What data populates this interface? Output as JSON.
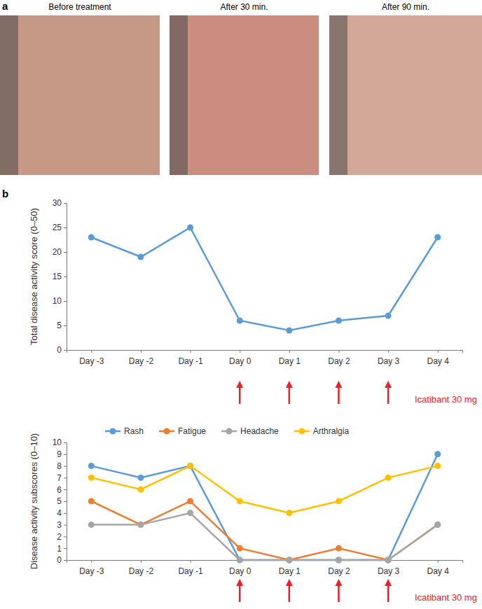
{
  "panel_labels": [
    "a",
    "b"
  ],
  "photos": [
    "Before treatment",
    "After 30 min.",
    "After 90 min."
  ],
  "chart_data": [
    {
      "type": "line",
      "y_label": "Total disease activity score (0–50)",
      "categories": [
        "Day -3",
        "Day -2",
        "Day -1",
        "Day 0",
        "Day 1",
        "Day 2",
        "Day 3",
        "Day 4"
      ],
      "values": [
        23,
        19,
        25,
        6,
        4,
        6,
        7,
        23
      ],
      "color": "#5b9bd5",
      "marker": "circle",
      "ylim": [
        0,
        30
      ],
      "yticks": [
        0,
        5,
        10,
        15,
        20,
        25,
        30
      ],
      "grid": false,
      "annotations": [
        {
          "text": "Icatibant 30 mg",
          "at": [
            "Day 0",
            "Day 1",
            "Day 2",
            "Day 3"
          ]
        }
      ]
    },
    {
      "type": "line",
      "y_label": "Disease activity subscores (0–10)",
      "categories": [
        "Day -3",
        "Day -2",
        "Day -1",
        "Day 0",
        "Day 1",
        "Day 2",
        "Day 3",
        "Day 4"
      ],
      "series": [
        {
          "name": "Rash",
          "color": "#5b9bd5",
          "marker": "circle",
          "values": [
            8,
            7,
            8,
            0,
            0,
            0,
            0,
            9
          ]
        },
        {
          "name": "Fatigue",
          "color": "#ed7d31",
          "marker": "circle",
          "values": [
            5,
            3,
            5,
            1,
            0,
            1,
            0,
            3
          ]
        },
        {
          "name": "Headache",
          "color": "#a5a5a5",
          "marker": "circle",
          "values": [
            3,
            3,
            4,
            0,
            0,
            0,
            0,
            3
          ]
        },
        {
          "name": "Arthralgia",
          "color": "#ffc000",
          "marker": "circle",
          "values": [
            7,
            6,
            8,
            5,
            4,
            5,
            7,
            8
          ]
        }
      ],
      "ylim": [
        0,
        10
      ],
      "yticks": [
        0,
        1,
        2,
        3,
        4,
        5,
        6,
        7,
        8,
        9,
        10
      ],
      "grid": false,
      "legend": "top",
      "annotations": [
        {
          "text": "Icatibant 30 mg",
          "at": [
            "Day 0",
            "Day 1",
            "Day 2",
            "Day 3"
          ]
        }
      ]
    }
  ]
}
